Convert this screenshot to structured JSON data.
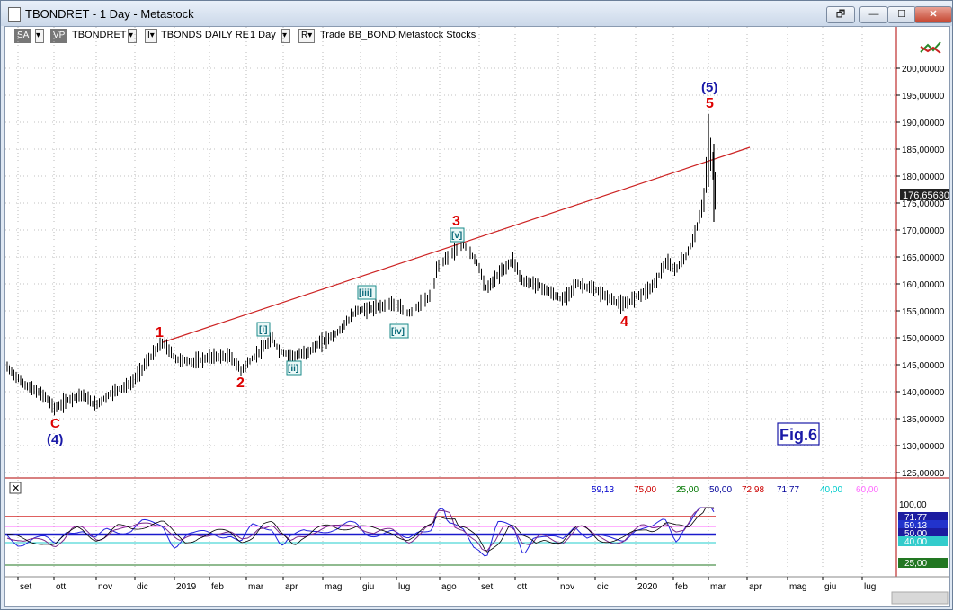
{
  "window": {
    "title": "TBONDRET - 1 Day - Metastock",
    "buttons": [
      "🗗",
      "—",
      "☐",
      "✕"
    ]
  },
  "toolbar": {
    "sa": "SA",
    "vp": "VP",
    "symbol": "TBONDRET",
    "security": "TBONDS DAILY RE",
    "period": "1 Day",
    "template": "Trade  BB_BOND  Metastock  Stocks",
    "arrow": "▾",
    "ind_i": "I▾",
    "ind_r": "R▾"
  },
  "price_axis": {
    "labels": [
      "200,00000",
      "195,00000",
      "190,00000",
      "185,00000",
      "180,00000",
      "175,00000",
      "170,00000",
      "165,00000",
      "160,00000",
      "155,00000",
      "150,00000",
      "145,00000",
      "140,00000",
      "135,00000",
      "130,00000",
      "125,00000"
    ],
    "current": "176,65630",
    "current_value": 176.6563
  },
  "date_axis": {
    "labels": [
      "set",
      "ott",
      "nov",
      "dic",
      "2019",
      "feb",
      "mar",
      "apr",
      "mag",
      "giu",
      "lug",
      "ago",
      "set",
      "ott",
      "nov",
      "dic",
      "2020",
      "feb",
      "mar",
      "apr",
      "mag",
      "giu",
      "lug"
    ]
  },
  "wave_labels": {
    "c": "C",
    "c4": "(4)",
    "w1": "1",
    "w2": "2",
    "w3": "3",
    "w4": "4",
    "w5": "5",
    "w5b": "(5)",
    "i": "[i]",
    "ii": "[ii]",
    "iii": "[iii]",
    "iv": "[iv]",
    "v": "[v]"
  },
  "figure_label": "Fig.6",
  "indicator": {
    "close_label": "✕",
    "legend": [
      {
        "text": "59,13",
        "color": "#0000cc"
      },
      {
        "text": "75,00",
        "color": "#cc0000"
      },
      {
        "text": "25,00",
        "color": "#007700"
      },
      {
        "text": "50,00",
        "color": "#000099"
      },
      {
        "text": "72,98",
        "color": "#cc0000"
      },
      {
        "text": "71,77",
        "color": "#000099"
      },
      {
        "text": "40,00",
        "color": "#00cccc"
      },
      {
        "text": "60,00",
        "color": "#ff66ff"
      }
    ],
    "axis_top": "100,00",
    "badges": [
      {
        "text": "71,77",
        "color": "#1c1ca0"
      },
      {
        "text": "59,13",
        "color": "#2233cc"
      },
      {
        "text": "50,00",
        "color": "#1c1ca0"
      },
      {
        "text": "40,00",
        "color": "#33cccc"
      },
      {
        "text": "25,00",
        "color": "#227722"
      }
    ]
  },
  "chart_data": {
    "type": "bar",
    "series": [
      {
        "name": "TBONDRET",
        "x": [
          "2018-09",
          "2018-10",
          "2018-11",
          "2018-12",
          "2019-01",
          "2019-02",
          "2019-03",
          "2019-04",
          "2019-05",
          "2019-06",
          "2019-07",
          "2019-08",
          "2019-09",
          "2019-10",
          "2019-11",
          "2019-12",
          "2020-01",
          "2020-02",
          "2020-03"
        ],
        "values": [
          144.5,
          137.5,
          138.0,
          142.0,
          146.0,
          146.0,
          146.0,
          147.5,
          150.0,
          155.0,
          155.0,
          165.0,
          160.0,
          163.0,
          158.0,
          158.0,
          157.5,
          163.0,
          183.0
        ]
      }
    ],
    "key_points": [
      {
        "x": "2018-10",
        "y": 136.5,
        "label": "C (4)"
      },
      {
        "x": "2019-01",
        "y": 149.0,
        "label": "1"
      },
      {
        "x": "2019-03",
        "y": 144.0,
        "label": "2"
      },
      {
        "x": "2019-08",
        "y": 167.5,
        "label": "3"
      },
      {
        "x": "2020-01",
        "y": 155.5,
        "label": "4"
      },
      {
        "x": "2020-03",
        "y": 191.5,
        "label": "5 (5)"
      }
    ],
    "ylim": [
      125,
      202
    ]
  }
}
